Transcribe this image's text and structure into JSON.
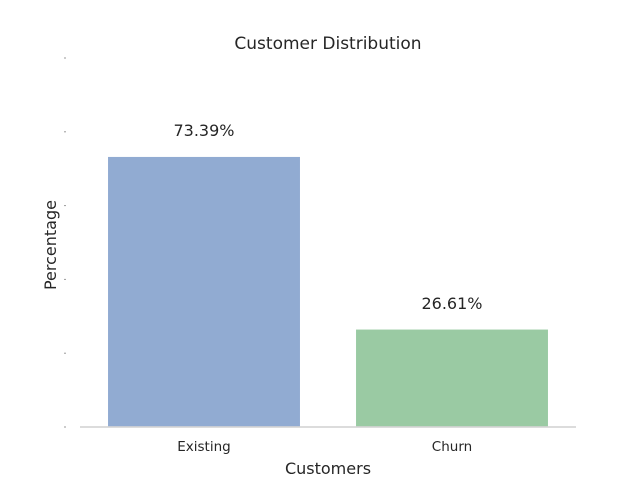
{
  "chart_data": {
    "type": "bar",
    "title": "Customer Distribution",
    "xlabel": "Customers",
    "ylabel": "Percentage",
    "categories": [
      "Existing",
      "Churn"
    ],
    "values": [
      73.39,
      26.61
    ],
    "data_labels": [
      "73.39%",
      "26.61%"
    ],
    "colors": [
      "#91abd2",
      "#9acaa3"
    ],
    "ylim": [
      0,
      100
    ],
    "grid": false,
    "legend": "none"
  }
}
